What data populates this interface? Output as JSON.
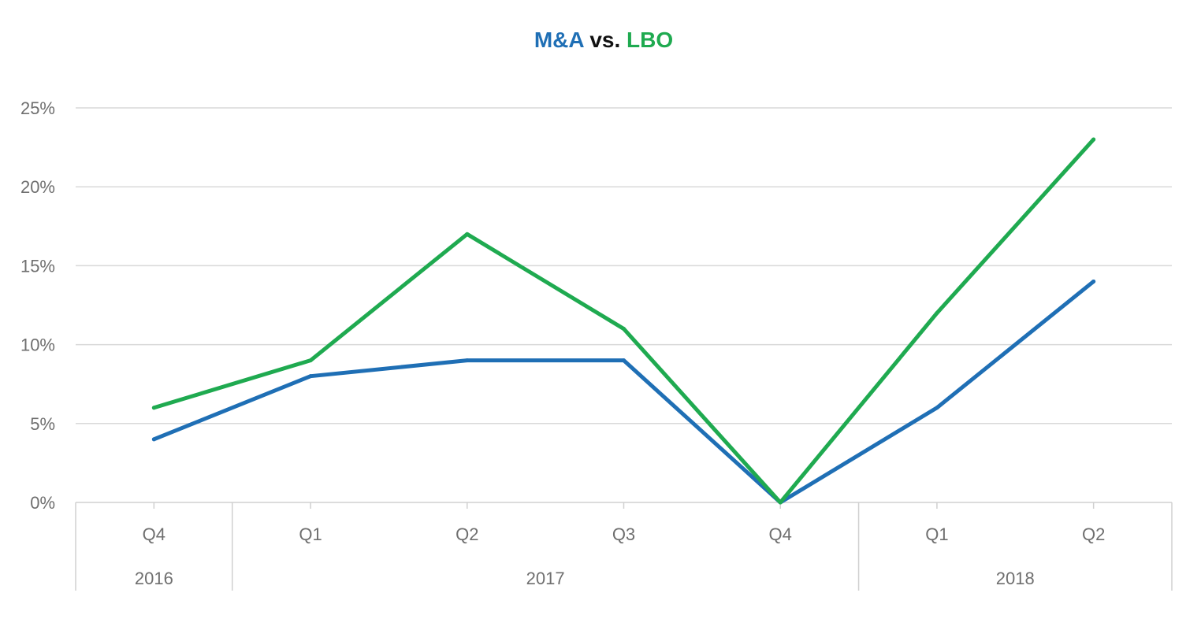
{
  "chart_data": {
    "type": "line",
    "title_parts": [
      {
        "text": "M&A",
        "color": "#1F6FB5"
      },
      {
        "text": " vs. ",
        "color": "#111111"
      },
      {
        "text": "LBO",
        "color": "#1FAA50"
      }
    ],
    "categories": [
      "Q4",
      "Q1",
      "Q2",
      "Q3",
      "Q4",
      "Q1",
      "Q2"
    ],
    "groups": [
      {
        "label": "2016",
        "span": 1
      },
      {
        "label": "2017",
        "span": 4
      },
      {
        "label": "2018",
        "span": 2
      }
    ],
    "series": [
      {
        "key": "ma",
        "color": "#1F6FB5",
        "values": [
          4,
          8,
          9,
          9,
          0,
          6,
          14
        ]
      },
      {
        "key": "lbo",
        "color": "#1FAA50",
        "values": [
          6,
          9,
          17,
          11,
          0,
          12,
          23
        ]
      }
    ],
    "y_ticks": [
      "0%",
      "5%",
      "10%",
      "15%",
      "20%",
      "25%"
    ],
    "ylim": [
      0,
      25
    ],
    "grid": true,
    "gridline_color": "#d9d9d9",
    "axis_color": "#d0d0d0"
  }
}
